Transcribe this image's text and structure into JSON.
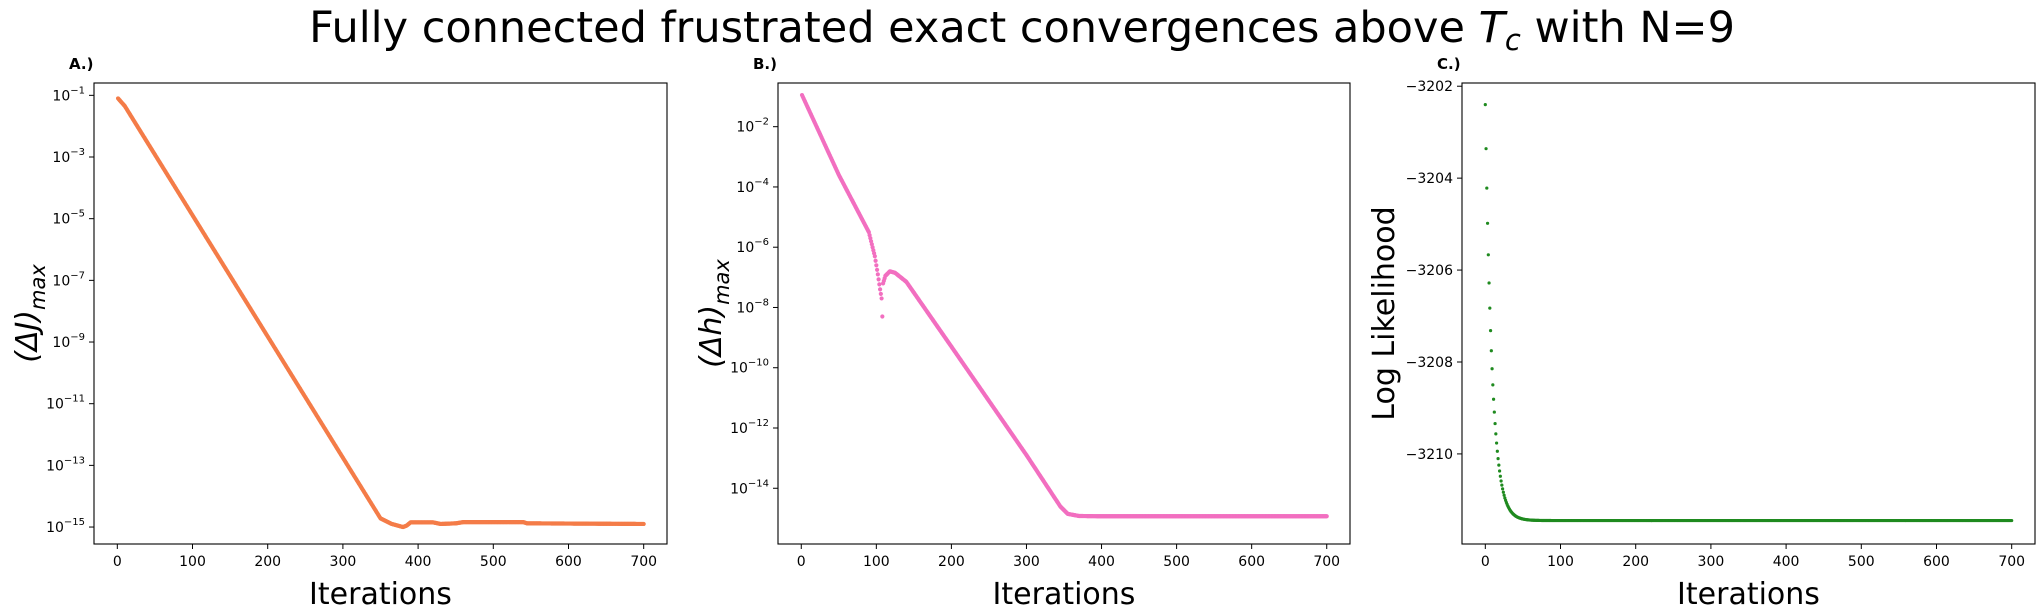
{
  "title": "Fully connected frustrated exact convergences above T_c with N=9",
  "title_parts": {
    "before": "Fully connected frustrated exact convergences above ",
    "symbol": "T",
    "subscript": "c",
    "after": " with N=9"
  },
  "chart_data": [
    {
      "type": "scatter",
      "panel_label": "A.)",
      "xlabel": "Iterations",
      "ylabel": {
        "main": "(ΔJ)",
        "subscript": "max"
      },
      "yscale": "log",
      "xlim": [
        -31,
        731
      ],
      "ylim_log10": [
        -15.55,
        -0.6
      ],
      "xticks": [
        0,
        100,
        200,
        300,
        400,
        500,
        600,
        700
      ],
      "yticks_exp": [
        -1,
        -3,
        -5,
        -7,
        -9,
        -11,
        -13,
        -15
      ],
      "color": "#f47c48",
      "series": [
        {
          "x_range": [
            1,
            700
          ],
          "log10_breakpoints": [
            [
              1,
              -1.1
            ],
            [
              10,
              -1.35
            ],
            [
              350,
              -14.72
            ],
            [
              365,
              -14.9
            ],
            [
              380,
              -15.0
            ],
            [
              385,
              -14.95
            ],
            [
              390,
              -14.85
            ],
            [
              420,
              -14.85
            ],
            [
              430,
              -14.9
            ],
            [
              450,
              -14.88
            ],
            [
              460,
              -14.84
            ],
            [
              540,
              -14.84
            ],
            [
              545,
              -14.88
            ],
            [
              700,
              -14.9
            ]
          ]
        }
      ]
    },
    {
      "type": "scatter",
      "panel_label": "B.)",
      "xlabel": "Iterations",
      "ylabel": {
        "main": "(Δh)",
        "subscript": "max"
      },
      "yscale": "log",
      "xlim": [
        -31,
        731
      ],
      "ylim_log10": [
        -15.85,
        -0.55
      ],
      "xticks": [
        0,
        100,
        200,
        300,
        400,
        500,
        600,
        700
      ],
      "yticks_exp": [
        -2,
        -4,
        -6,
        -8,
        -10,
        -12,
        -14
      ],
      "color": "#f26fc0",
      "series": [
        {
          "x_range": [
            1,
            700
          ],
          "log10_breakpoints": [
            [
              1,
              -0.95
            ],
            [
              50,
              -3.6
            ],
            [
              90,
              -5.5
            ],
            [
              98,
              -6.3
            ],
            [
              102,
              -6.9
            ],
            [
              105,
              -7.4
            ],
            [
              107,
              -7.7
            ],
            [
              108,
              -8.3
            ],
            [
              109,
              -7.2
            ],
            [
              112,
              -6.95
            ],
            [
              118,
              -6.8
            ],
            [
              125,
              -6.85
            ],
            [
              140,
              -7.15
            ],
            [
              200,
              -9.3
            ],
            [
              300,
              -12.9
            ],
            [
              345,
              -14.6
            ],
            [
              355,
              -14.85
            ],
            [
              370,
              -14.92
            ],
            [
              400,
              -14.93
            ],
            [
              700,
              -14.93
            ]
          ]
        }
      ]
    },
    {
      "type": "scatter",
      "panel_label": "C.)",
      "xlabel": "Iterations",
      "ylabel": "Log Likelihood",
      "yscale": "linear",
      "xlim": [
        -31,
        731
      ],
      "ylim": [
        -3211.96,
        -3201.93
      ],
      "xticks": [
        0,
        100,
        200,
        300,
        400,
        500,
        600,
        700
      ],
      "yticks": [
        -3202,
        -3204,
        -3206,
        -3208,
        -3210
      ],
      "color": "#1f8a1f",
      "series": [
        {
          "x_range": [
            0,
            700
          ],
          "start": -3202.4,
          "end": -3211.45,
          "decay": 0.112
        }
      ]
    }
  ]
}
